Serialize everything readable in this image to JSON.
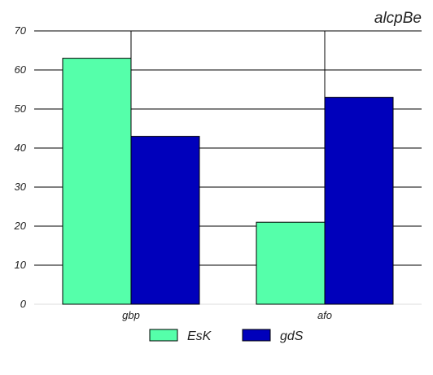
{
  "chart_data": {
    "type": "bar",
    "title": "alcpBe",
    "xlabel": "",
    "ylabel": "",
    "categories": [
      "gbp",
      "afo"
    ],
    "series": [
      {
        "name": "EsK",
        "values": [
          63,
          21
        ],
        "color": "#55ffaa"
      },
      {
        "name": "gdS",
        "values": [
          43,
          53
        ],
        "color": "#0000bb"
      }
    ],
    "ylim": [
      0,
      70
    ],
    "yticks": [
      0,
      10,
      20,
      30,
      40,
      50,
      60,
      70
    ],
    "grid": true,
    "legend_position": "bottom"
  }
}
